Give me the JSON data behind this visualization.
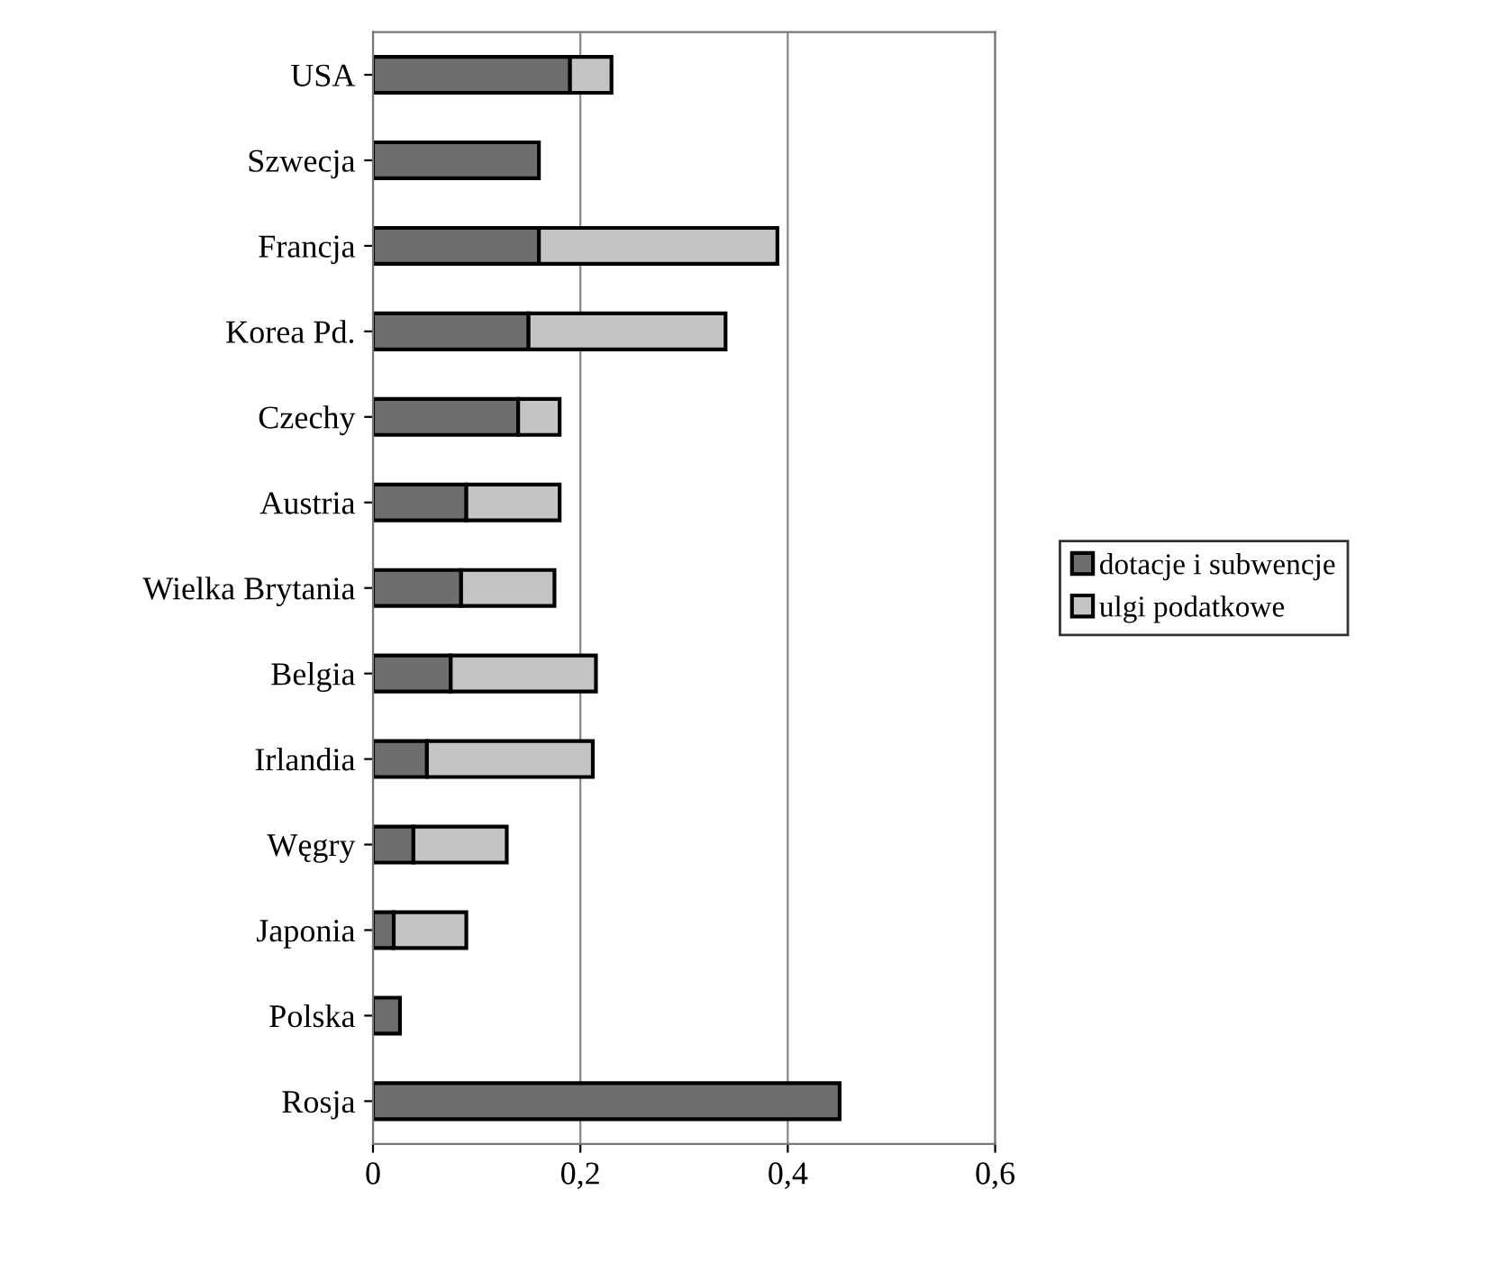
{
  "chart_data": {
    "type": "bar",
    "orientation": "horizontal",
    "stacked": true,
    "categories": [
      "USA",
      "Szwecja",
      "Francja",
      "Korea Pd.",
      "Czechy",
      "Austria",
      "Wielka Brytania",
      "Belgia",
      "Irlandia",
      "Węgry",
      "Japonia",
      "Polska",
      "Rosja"
    ],
    "series": [
      {
        "name": "dotacje i subwencje",
        "color": "#6e6e6e",
        "values": [
          0.19,
          0.16,
          0.16,
          0.15,
          0.14,
          0.09,
          0.085,
          0.075,
          0.052,
          0.039,
          0.02,
          0.026,
          0.45
        ]
      },
      {
        "name": "ulgi podatkowe",
        "color": "#c4c4c4",
        "values": [
          0.04,
          null,
          0.23,
          0.19,
          0.04,
          0.09,
          0.09,
          0.14,
          0.16,
          0.09,
          0.07,
          null,
          null
        ]
      }
    ],
    "xlim": [
      0,
      0.6
    ],
    "xticks": [
      0,
      {
        "value": 0.2,
        "label": "0,2"
      },
      {
        "value": 0.4,
        "label": "0,4"
      },
      {
        "value": 0.6,
        "label": "0,6"
      }
    ],
    "grid": "x",
    "legend": "right"
  }
}
